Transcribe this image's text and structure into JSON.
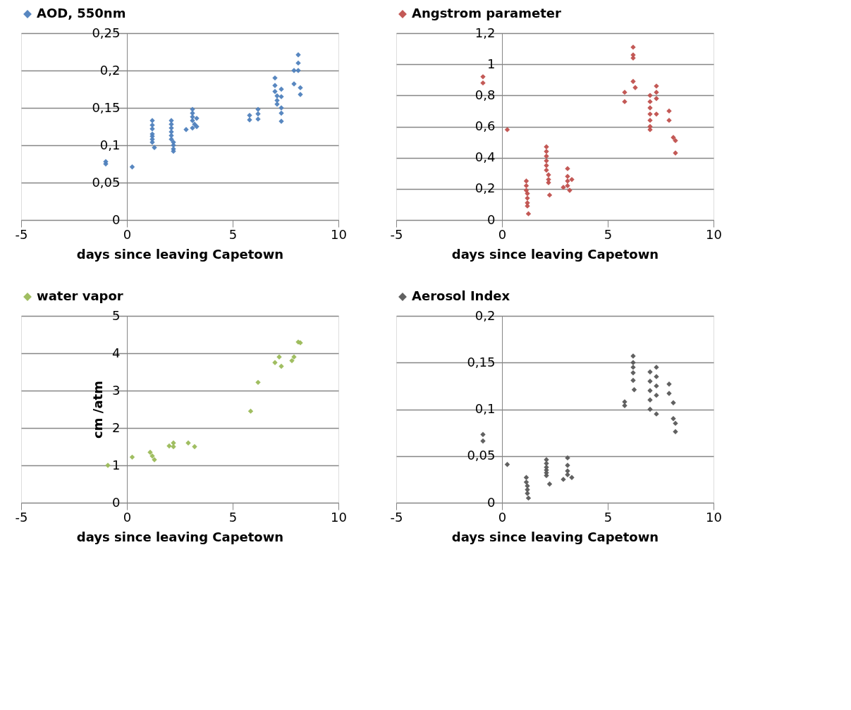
{
  "chart_data": [
    {
      "type": "scatter",
      "xlabel": "days since leaving Capetown",
      "legend": "top",
      "grid": "y",
      "marker": "diamond",
      "xlim": [
        -5,
        10
      ],
      "xticks": [
        -5,
        0,
        5,
        10
      ],
      "ylim": [
        0,
        0.25
      ],
      "yticks": [
        0,
        {
          "value": 0.05,
          "label": "0,05"
        },
        {
          "value": 0.1,
          "label": "0,1"
        },
        {
          "value": 0.15,
          "label": "0,15"
        },
        {
          "value": 0.2,
          "label": "0,2"
        },
        {
          "value": 0.25,
          "label": "0,25"
        }
      ],
      "series": [
        {
          "name": "AOD, 550nm",
          "color": "#4f81bd",
          "x": [
            -1.0,
            -1.0,
            0.25,
            1.2,
            1.2,
            1.2,
            1.2,
            1.2,
            1.2,
            1.2,
            1.3,
            2.1,
            2.1,
            2.1,
            2.1,
            2.1,
            2.1,
            2.2,
            2.2,
            2.2,
            2.2,
            2.8,
            3.1,
            3.1,
            3.1,
            3.1,
            3.2,
            3.1,
            3.3,
            3.3,
            5.8,
            5.8,
            6.2,
            6.2,
            6.2,
            7.0,
            7.0,
            7.0,
            7.1,
            7.1,
            7.1,
            7.3,
            7.3,
            7.3,
            7.3,
            7.3,
            7.9,
            7.9,
            8.1,
            8.1,
            8.1,
            8.2,
            8.2
          ],
          "values": [
            0.078,
            0.075,
            0.071,
            0.133,
            0.127,
            0.122,
            0.115,
            0.112,
            0.108,
            0.104,
            0.097,
            0.133,
            0.128,
            0.123,
            0.118,
            0.113,
            0.108,
            0.104,
            0.1,
            0.095,
            0.092,
            0.121,
            0.148,
            0.143,
            0.138,
            0.133,
            0.128,
            0.123,
            0.136,
            0.125,
            0.14,
            0.134,
            0.148,
            0.142,
            0.135,
            0.19,
            0.18,
            0.172,
            0.166,
            0.16,
            0.155,
            0.175,
            0.165,
            0.15,
            0.143,
            0.132,
            0.2,
            0.182,
            0.221,
            0.21,
            0.2,
            0.177,
            0.168
          ]
        }
      ]
    },
    {
      "type": "scatter",
      "xlabel": "days since leaving Capetown",
      "legend": "top",
      "grid": "y",
      "marker": "diamond",
      "xlim": [
        -5,
        10
      ],
      "xticks": [
        -5,
        0,
        5,
        10
      ],
      "ylim": [
        0,
        1.2
      ],
      "yticks": [
        0,
        {
          "value": 0.2,
          "label": "0,2"
        },
        {
          "value": 0.4,
          "label": "0,4"
        },
        {
          "value": 0.6,
          "label": "0,6"
        },
        {
          "value": 0.8,
          "label": "0,8"
        },
        1,
        {
          "value": 1.2,
          "label": "1,2"
        }
      ],
      "series": [
        {
          "name": "Angstrom parameter",
          "color": "#c0504d",
          "x": [
            -0.9,
            -0.9,
            0.25,
            1.15,
            1.15,
            1.15,
            1.2,
            1.2,
            1.2,
            1.2,
            1.25,
            2.1,
            2.1,
            2.1,
            2.1,
            2.1,
            2.1,
            2.2,
            2.2,
            2.2,
            2.25,
            2.9,
            3.1,
            3.1,
            3.1,
            3.1,
            3.2,
            3.3,
            5.8,
            5.8,
            6.2,
            6.2,
            6.2,
            6.2,
            6.3,
            7.0,
            7.0,
            7.0,
            7.0,
            7.0,
            7.0,
            7.0,
            7.3,
            7.3,
            7.3,
            7.3,
            7.9,
            7.9,
            8.1,
            8.2,
            8.2
          ],
          "values": [
            0.92,
            0.88,
            0.58,
            0.25,
            0.22,
            0.19,
            0.17,
            0.14,
            0.11,
            0.09,
            0.04,
            0.47,
            0.44,
            0.41,
            0.38,
            0.35,
            0.32,
            0.29,
            0.26,
            0.24,
            0.16,
            0.21,
            0.33,
            0.28,
            0.25,
            0.22,
            0.19,
            0.26,
            0.82,
            0.76,
            1.11,
            1.06,
            1.04,
            0.89,
            0.85,
            0.8,
            0.76,
            0.72,
            0.68,
            0.64,
            0.6,
            0.58,
            0.86,
            0.82,
            0.78,
            0.68,
            0.7,
            0.64,
            0.53,
            0.51,
            0.43
          ]
        }
      ]
    },
    {
      "type": "scatter",
      "xlabel": "days since leaving Capetown",
      "ylabel": "cm /atm",
      "legend": "top",
      "grid": "y",
      "marker": "diamond",
      "xlim": [
        -5,
        10
      ],
      "xticks": [
        -5,
        0,
        5,
        10
      ],
      "ylim": [
        0,
        5
      ],
      "yticks": [
        0,
        1,
        2,
        3,
        4,
        5
      ],
      "series": [
        {
          "name": "water vapor",
          "color": "#9bbb59",
          "x": [
            -0.9,
            0.25,
            1.1,
            1.2,
            1.3,
            2.0,
            2.2,
            2.2,
            2.9,
            3.2,
            5.85,
            6.2,
            7.0,
            7.2,
            7.3,
            7.8,
            7.9,
            8.1,
            8.2
          ],
          "values": [
            1.0,
            1.22,
            1.35,
            1.25,
            1.15,
            1.52,
            1.6,
            1.5,
            1.6,
            1.5,
            2.45,
            3.22,
            3.75,
            3.9,
            3.65,
            3.8,
            3.9,
            4.3,
            4.28
          ]
        }
      ]
    },
    {
      "type": "scatter",
      "xlabel": "days since leaving Capetown",
      "legend": "top",
      "grid": "y",
      "marker": "diamond",
      "xlim": [
        -5,
        10
      ],
      "xticks": [
        -5,
        0,
        5,
        10
      ],
      "ylim": [
        0,
        0.2
      ],
      "yticks": [
        0,
        {
          "value": 0.05,
          "label": "0,05"
        },
        {
          "value": 0.1,
          "label": "0,1"
        },
        {
          "value": 0.15,
          "label": "0,15"
        },
        {
          "value": 0.2,
          "label": "0,2"
        }
      ],
      "series": [
        {
          "name": "Aerosol Index",
          "color": "#595959",
          "x": [
            -0.9,
            -0.9,
            0.25,
            1.15,
            1.15,
            1.2,
            1.2,
            1.2,
            1.25,
            2.1,
            2.1,
            2.1,
            2.1,
            2.1,
            2.1,
            2.25,
            2.9,
            3.1,
            3.1,
            3.1,
            3.1,
            3.3,
            5.8,
            5.8,
            6.2,
            6.2,
            6.2,
            6.2,
            6.2,
            6.25,
            7.0,
            7.0,
            7.0,
            7.0,
            7.0,
            7.3,
            7.3,
            7.3,
            7.3,
            7.3,
            7.9,
            7.9,
            8.1,
            8.1,
            8.2,
            8.2
          ],
          "values": [
            0.073,
            0.066,
            0.041,
            0.027,
            0.022,
            0.018,
            0.014,
            0.01,
            0.005,
            0.046,
            0.042,
            0.038,
            0.035,
            0.032,
            0.029,
            0.02,
            0.025,
            0.048,
            0.04,
            0.034,
            0.03,
            0.027,
            0.108,
            0.104,
            0.157,
            0.15,
            0.145,
            0.139,
            0.131,
            0.121,
            0.14,
            0.13,
            0.12,
            0.11,
            0.1,
            0.145,
            0.135,
            0.125,
            0.115,
            0.095,
            0.127,
            0.117,
            0.107,
            0.09,
            0.085,
            0.076
          ]
        }
      ]
    }
  ]
}
